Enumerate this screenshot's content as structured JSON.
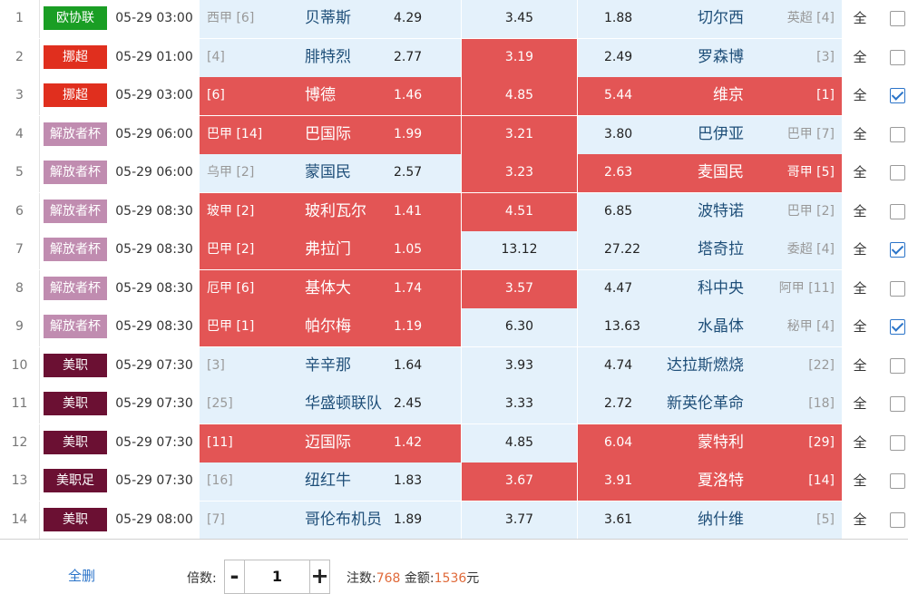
{
  "colors": {
    "highlight": "#e35555",
    "cell_bg": "#e4f1fb",
    "link": "#2b74c9",
    "count": "#e06a3a"
  },
  "rows": [
    {
      "idx": "1",
      "league": "欧协联",
      "league_color": "#1a9e24",
      "time": "05-29 03:00",
      "home_rank": "西甲 [6]",
      "home": "贝蒂斯",
      "home_odds": "4.29",
      "draw": "3.45",
      "away_odds": "1.88",
      "away": "切尔西",
      "away_rank": "英超 [4]",
      "home_sel": false,
      "draw_sel": false,
      "away_sel": false,
      "all": "全",
      "checked": false
    },
    {
      "idx": "2",
      "league": "挪超",
      "league_color": "#e02f1e",
      "time": "05-29 01:00",
      "home_rank": "[4]",
      "home": "腓特烈",
      "home_odds": "2.77",
      "draw": "3.19",
      "away_odds": "2.49",
      "away": "罗森博",
      "away_rank": "[3]",
      "home_sel": false,
      "draw_sel": true,
      "away_sel": false,
      "all": "全",
      "checked": false
    },
    {
      "idx": "3",
      "league": "挪超",
      "league_color": "#e02f1e",
      "time": "05-29 03:00",
      "home_rank": "[6]",
      "home": "博德",
      "home_odds": "1.46",
      "draw": "4.85",
      "away_odds": "5.44",
      "away": "维京",
      "away_rank": "[1]",
      "home_sel": true,
      "draw_sel": true,
      "away_sel": true,
      "all": "全",
      "checked": true
    },
    {
      "idx": "4",
      "league": "解放者杯",
      "league_color": "#c08cb0",
      "time": "05-29 06:00",
      "home_rank": "巴甲 [14]",
      "home": "巴国际",
      "home_odds": "1.99",
      "draw": "3.21",
      "away_odds": "3.80",
      "away": "巴伊亚",
      "away_rank": "巴甲 [7]",
      "home_sel": true,
      "draw_sel": true,
      "away_sel": false,
      "all": "全",
      "checked": false
    },
    {
      "idx": "5",
      "league": "解放者杯",
      "league_color": "#c08cb0",
      "time": "05-29 06:00",
      "home_rank": "乌甲 [2]",
      "home": "蒙国民",
      "home_odds": "2.57",
      "draw": "3.23",
      "away_odds": "2.63",
      "away": "麦国民",
      "away_rank": "哥甲 [5]",
      "home_sel": false,
      "draw_sel": true,
      "away_sel": true,
      "all": "全",
      "checked": false
    },
    {
      "idx": "6",
      "league": "解放者杯",
      "league_color": "#c08cb0",
      "time": "05-29 08:30",
      "home_rank": "玻甲 [2]",
      "home": "玻利瓦尔",
      "home_odds": "1.41",
      "draw": "4.51",
      "away_odds": "6.85",
      "away": "波特诺",
      "away_rank": "巴甲 [2]",
      "home_sel": true,
      "draw_sel": true,
      "away_sel": false,
      "all": "全",
      "checked": false
    },
    {
      "idx": "7",
      "league": "解放者杯",
      "league_color": "#c08cb0",
      "time": "05-29 08:30",
      "home_rank": "巴甲 [2]",
      "home": "弗拉门",
      "home_odds": "1.05",
      "draw": "13.12",
      "away_odds": "27.22",
      "away": "塔奇拉",
      "away_rank": "委超 [4]",
      "home_sel": true,
      "draw_sel": false,
      "away_sel": false,
      "all": "全",
      "checked": true
    },
    {
      "idx": "8",
      "league": "解放者杯",
      "league_color": "#c08cb0",
      "time": "05-29 08:30",
      "home_rank": "厄甲 [6]",
      "home": "基体大",
      "home_odds": "1.74",
      "draw": "3.57",
      "away_odds": "4.47",
      "away": "科中央",
      "away_rank": "阿甲 [11]",
      "home_sel": true,
      "draw_sel": true,
      "away_sel": false,
      "all": "全",
      "checked": false
    },
    {
      "idx": "9",
      "league": "解放者杯",
      "league_color": "#c08cb0",
      "time": "05-29 08:30",
      "home_rank": "巴甲 [1]",
      "home": "帕尔梅",
      "home_odds": "1.19",
      "draw": "6.30",
      "away_odds": "13.63",
      "away": "水晶体",
      "away_rank": "秘甲 [4]",
      "home_sel": true,
      "draw_sel": false,
      "away_sel": false,
      "all": "全",
      "checked": true
    },
    {
      "idx": "10",
      "league": "美职",
      "league_color": "#6b1033",
      "time": "05-29 07:30",
      "home_rank": "[3]",
      "home": "辛辛那",
      "home_odds": "1.64",
      "draw": "3.93",
      "away_odds": "4.74",
      "away": "达拉斯燃烧",
      "away_rank": "[22]",
      "home_sel": false,
      "draw_sel": false,
      "away_sel": false,
      "all": "全",
      "checked": false
    },
    {
      "idx": "11",
      "league": "美职",
      "league_color": "#6b1033",
      "time": "05-29 07:30",
      "home_rank": "[25]",
      "home": "华盛顿联队",
      "home_odds": "2.45",
      "draw": "3.33",
      "away_odds": "2.72",
      "away": "新英伦革命",
      "away_rank": "[18]",
      "home_sel": false,
      "draw_sel": false,
      "away_sel": false,
      "all": "全",
      "checked": false
    },
    {
      "idx": "12",
      "league": "美职",
      "league_color": "#6b1033",
      "time": "05-29 07:30",
      "home_rank": "[11]",
      "home": "迈国际",
      "home_odds": "1.42",
      "draw": "4.85",
      "away_odds": "6.04",
      "away": "蒙特利",
      "away_rank": "[29]",
      "home_sel": true,
      "draw_sel": false,
      "away_sel": true,
      "all": "全",
      "checked": false
    },
    {
      "idx": "13",
      "league": "美职足",
      "league_color": "#6b1033",
      "time": "05-29 07:30",
      "home_rank": "[16]",
      "home": "纽红牛",
      "home_odds": "1.83",
      "draw": "3.67",
      "away_odds": "3.91",
      "away": "夏洛特",
      "away_rank": "[14]",
      "home_sel": false,
      "draw_sel": true,
      "away_sel": true,
      "all": "全",
      "checked": false
    },
    {
      "idx": "14",
      "league": "美职",
      "league_color": "#6b1033",
      "time": "05-29 08:00",
      "home_rank": "[7]",
      "home": "哥伦布机员",
      "home_odds": "1.89",
      "draw": "3.77",
      "away_odds": "3.61",
      "away": "纳什维",
      "away_rank": "[5]",
      "home_sel": false,
      "draw_sel": false,
      "away_sel": false,
      "all": "全",
      "checked": false
    }
  ],
  "footer": {
    "select_all": "全删",
    "multiplier_label": "倍数:",
    "minus": "-",
    "plus": "+",
    "multiplier_value": "1",
    "bets_label": "注数:",
    "bets_count": "768",
    "amount_label": "金额:",
    "amount_value": "1536",
    "amount_unit": "元"
  }
}
